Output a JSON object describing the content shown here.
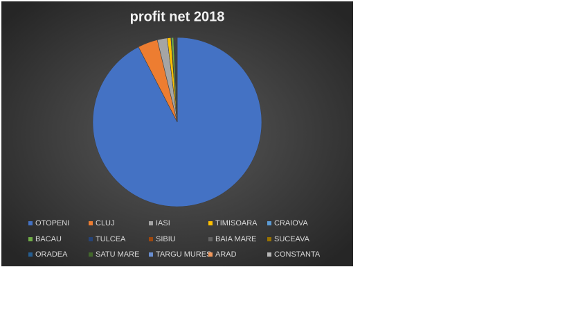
{
  "chart_data": {
    "type": "pie",
    "title": "profit net 2018",
    "categories": [
      "OTOPENI",
      "CLUJ",
      "IASI",
      "TIMISOARA",
      "CRAIOVA",
      "BACAU",
      "TULCEA",
      "SIBIU",
      "BAIA MARE",
      "SUCEAVA",
      "ORADEA",
      "SATU MARE",
      "TARGU MURES",
      "ARAD",
      "CONSTANTA"
    ],
    "values": [
      92.5,
      3.8,
      1.9,
      0.7,
      0.1,
      0.4,
      0.1,
      0.1,
      0.1,
      0.1,
      0.05,
      0.1,
      0.05,
      0.05,
      0.05
    ],
    "colors": [
      "#4472c4",
      "#ed7d31",
      "#a5a5a5",
      "#ffc000",
      "#5b9bd5",
      "#70ad47",
      "#264478",
      "#9e480e",
      "#636363",
      "#997300",
      "#255e91",
      "#43682b",
      "#698ed0",
      "#f1975a",
      "#b7b7b7"
    ],
    "legend": "bottom"
  }
}
